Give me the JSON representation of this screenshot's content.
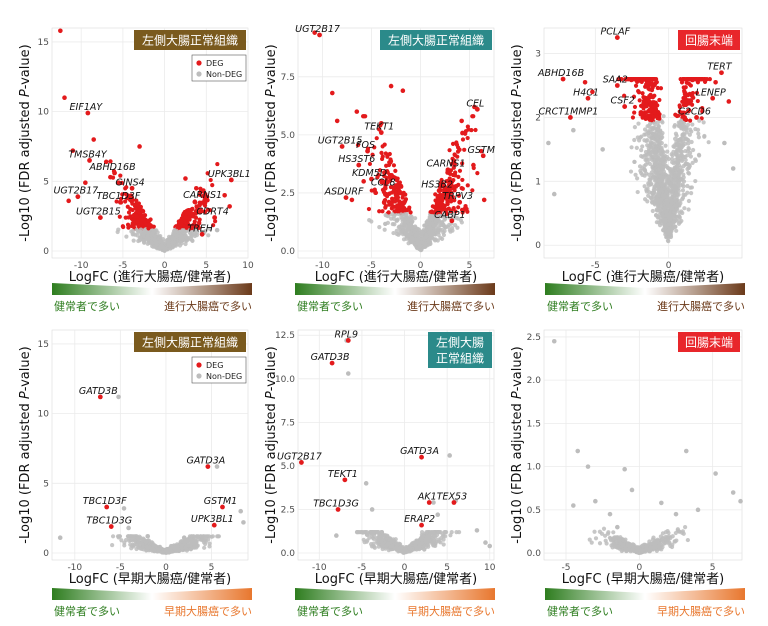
{
  "legend": {
    "deg": "DEG",
    "non_deg": "Non-DEG"
  },
  "colors": {
    "deg": "#e31a1c",
    "non_deg": "#bdbdbd",
    "green": "#2e7d1f",
    "brown": "#6b3a1a",
    "orange": "#e8772e",
    "badge_brown": "#7a5a1e",
    "badge_teal": "#2b8a8a",
    "badge_red": "#e8262b"
  },
  "chart_data": [
    {
      "type": "scatter",
      "panel": "top-left",
      "region": "左側大腸正常組織",
      "badge_color": "#7a5a1e",
      "legend": true,
      "xlabel": "LogFC (進行大腸癌/健常者)",
      "ylabel_prefix": "-Log10 (FDR adjusted ",
      "ylabel_italic": "P",
      "ylabel_suffix": "-value)",
      "xlim": [
        -13.5,
        10
      ],
      "ylim": [
        -0.5,
        16
      ],
      "xticks": [
        -10,
        -5,
        0,
        5,
        10
      ],
      "yticks": [
        0,
        5,
        10,
        15
      ],
      "left_text": "健常者で多い",
      "right_text": "進行大腸癌で多い",
      "right_color": "#6b3a1a",
      "labels": [
        {
          "text": "EIF1AY",
          "x": -9.2,
          "y": 9.9
        },
        {
          "text": "TMSB4Y",
          "x": -9.0,
          "y": 6.5
        },
        {
          "text": "ABHD16B",
          "x": -6.0,
          "y": 5.6
        },
        {
          "text": "GINS4",
          "x": -3.9,
          "y": 4.5
        },
        {
          "text": "TBC1D3F",
          "x": -5.3,
          "y": 3.5
        },
        {
          "text": "UGT2B17",
          "x": -10.4,
          "y": 3.9
        },
        {
          "text": "UGT2B15",
          "x": -7.7,
          "y": 2.4
        },
        {
          "text": "UPK3BL1",
          "x": 8.0,
          "y": 5.1
        },
        {
          "text": "CARNS1",
          "x": 4.8,
          "y": 3.6
        },
        {
          "text": "CDRT4",
          "x": 6.0,
          "y": 2.4
        },
        {
          "text": "TREH",
          "x": 4.5,
          "y": 1.2
        }
      ]
    },
    {
      "type": "scatter",
      "panel": "top-middle",
      "region": "左側大腸正常組織",
      "badge_color": "#2b8a8a",
      "legend": false,
      "xlabel": "LogFC (進行大腸癌/健常者)",
      "ylabel_prefix": "-Log10 (FDR adjusted ",
      "ylabel_italic": "P",
      "ylabel_suffix": "-value)",
      "xlim": [
        -12.5,
        7.5
      ],
      "ylim": [
        -0.3,
        9.6
      ],
      "xticks": [
        -10,
        -5,
        0,
        5
      ],
      "yticks": [
        0.0,
        2.5,
        5.0,
        7.5
      ],
      "left_text": "健常者で多い",
      "right_text": "進行大腸癌で多い",
      "right_color": "#6b3a1a",
      "labels": [
        {
          "text": "UGT2B17",
          "x": -10.3,
          "y": 9.3
        },
        {
          "text": "CEL",
          "x": 5.8,
          "y": 6.1
        },
        {
          "text": "TEKT1",
          "x": -4.0,
          "y": 5.1
        },
        {
          "text": "UGT2B15",
          "x": -8.0,
          "y": 4.5
        },
        {
          "text": "FOS",
          "x": -5.4,
          "y": 4.3
        },
        {
          "text": "HS3ST6",
          "x": -6.3,
          "y": 3.7
        },
        {
          "text": "KDM5D",
          "x": -5.0,
          "y": 3.1
        },
        {
          "text": "CCL8",
          "x": -3.6,
          "y": 2.7
        },
        {
          "text": "ASDURF",
          "x": -7.6,
          "y": 2.3
        },
        {
          "text": "GSTM",
          "x": 6.4,
          "y": 4.1
        },
        {
          "text": "CARNS1",
          "x": 2.8,
          "y": 3.5
        },
        {
          "text": "HS3B2",
          "x": 1.9,
          "y": 2.6
        },
        {
          "text": "TRPV3",
          "x": 4.0,
          "y": 2.1
        },
        {
          "text": "CABP1",
          "x": 3.2,
          "y": 1.3
        }
      ]
    },
    {
      "type": "scatter",
      "panel": "top-right",
      "region": "回腸末端",
      "badge_color": "#e8262b",
      "legend": false,
      "xlabel": "LogFC (進行大腸癌/健常者)",
      "ylabel_prefix": "-Log10 (FDR adjusted ",
      "ylabel_italic": "P",
      "ylabel_suffix": "-value)",
      "xlim": [
        -8.5,
        5
      ],
      "ylim": [
        -0.2,
        3.4
      ],
      "xticks": [
        -5,
        0
      ],
      "yticks": [
        0,
        1,
        2,
        3
      ],
      "left_text": "健常者で多い",
      "right_text": "進行大腸癌で多い",
      "right_color": "#6b3a1a",
      "labels": [
        {
          "text": "PCLAF",
          "x": -3.5,
          "y": 3.25
        },
        {
          "text": "ABHD16B",
          "x": -7.2,
          "y": 2.6
        },
        {
          "text": "SAA2",
          "x": -3.5,
          "y": 2.5
        },
        {
          "text": "H4C1",
          "x": -5.5,
          "y": 2.3
        },
        {
          "text": "CSF2",
          "x": -3.0,
          "y": 2.17
        },
        {
          "text": "CRCT1MMP1",
          "x": -6.7,
          "y": 2.0
        },
        {
          "text": "TERT",
          "x": 3.6,
          "y": 2.7
        },
        {
          "text": "LENEP",
          "x": 3.0,
          "y": 2.3
        },
        {
          "text": "C2CD6",
          "x": 1.9,
          "y": 2.0
        }
      ]
    },
    {
      "type": "scatter",
      "panel": "bottom-left",
      "region": "左側大腸正常組織",
      "badge_color": "#7a5a1e",
      "legend": true,
      "xlabel": "LogFC (早期大腸癌/健常者)",
      "ylabel_prefix": "-Log10 (FDR adjusted ",
      "ylabel_italic": "P",
      "ylabel_suffix": "-value)",
      "xlim": [
        -12.5,
        9
      ],
      "ylim": [
        -0.5,
        16
      ],
      "xticks": [
        -10,
        -5,
        0,
        5
      ],
      "yticks": [
        0,
        5,
        10,
        15
      ],
      "left_text": "健常者で多い",
      "right_text": "早期大腸癌で多い",
      "right_color": "#e8772e",
      "labels": [
        {
          "text": "GATD3B",
          "x": -7.2,
          "y": 11.2
        },
        {
          "text": "GATD3A",
          "x": 4.6,
          "y": 6.2
        },
        {
          "text": "TBC1D3F",
          "x": -6.5,
          "y": 3.3
        },
        {
          "text": "TBC1D3G",
          "x": -6.0,
          "y": 1.9
        },
        {
          "text": "GSTM1",
          "x": 6.2,
          "y": 3.3
        },
        {
          "text": "UPK3BL1",
          "x": 5.3,
          "y": 2.0
        }
      ]
    },
    {
      "type": "scatter",
      "panel": "bottom-middle",
      "region": "左側大腸\n正常組織",
      "badge_color": "#2b8a8a",
      "legend": false,
      "xlabel": "LogFC (早期大腸癌/健常者)",
      "ylabel_prefix": "-Log10 (FDR adjusted ",
      "ylabel_italic": "P",
      "ylabel_suffix": "-value)",
      "xlim": [
        -12.5,
        10.5
      ],
      "ylim": [
        -0.4,
        12.8
      ],
      "xticks": [
        -10,
        -5,
        0,
        5,
        10
      ],
      "yticks": [
        0.0,
        2.5,
        5.0,
        7.5,
        10.0,
        12.5
      ],
      "left_text": "健常者で多い",
      "right_text": "早期大腸癌で多い",
      "right_color": "#e8772e",
      "labels": [
        {
          "text": "RPL9",
          "x": -6.6,
          "y": 12.2
        },
        {
          "text": "GATD3B",
          "x": -8.5,
          "y": 10.9
        },
        {
          "text": "UGT2B17",
          "x": -12.1,
          "y": 5.2
        },
        {
          "text": "GATD3A",
          "x": 2.0,
          "y": 5.5
        },
        {
          "text": "TEKT1",
          "x": -7.0,
          "y": 4.2
        },
        {
          "text": "AK1",
          "x": 2.9,
          "y": 2.9
        },
        {
          "text": "TEX53",
          "x": 5.8,
          "y": 2.9
        },
        {
          "text": "TBC1D3G",
          "x": -7.8,
          "y": 2.5
        },
        {
          "text": "ERAP2",
          "x": 2.0,
          "y": 1.6
        }
      ]
    },
    {
      "type": "scatter",
      "panel": "bottom-right",
      "region": "回腸末端",
      "badge_color": "#e8262b",
      "legend": false,
      "xlabel": "LogFC (早期大腸癌/健常者)",
      "ylabel_prefix": "-Log10 (FDR adjusted ",
      "ylabel_italic": "P",
      "ylabel_suffix": "-value)",
      "xlim": [
        -6.5,
        7
      ],
      "ylim": [
        -0.08,
        2.58
      ],
      "xticks": [
        -5,
        0,
        5
      ],
      "yticks": [
        0.0,
        0.5,
        1.0,
        1.5,
        2.0,
        2.5
      ],
      "left_text": "健常者で多い",
      "right_text": "早期大腸癌で多い",
      "right_color": "#e8772e",
      "labels": []
    }
  ]
}
